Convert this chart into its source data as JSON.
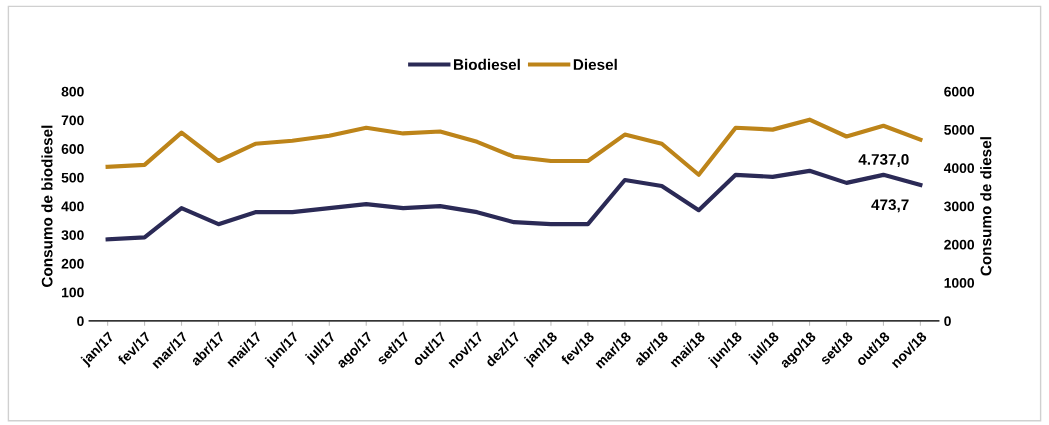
{
  "chart_data": {
    "type": "line",
    "categories": [
      "jan/17",
      "fev/17",
      "mar/17",
      "abr/17",
      "mai/17",
      "jun/17",
      "jul/17",
      "ago/17",
      "set/17",
      "out/17",
      "nov/17",
      "dez/17",
      "jan/18",
      "fev/18",
      "mar/18",
      "abr/18",
      "mai/18",
      "jun/18",
      "jul/18",
      "ago/18",
      "set/18",
      "out/18",
      "nov/18"
    ],
    "ylabel": "Consumo de biodiesel",
    "y2label": "Consumo de diesel",
    "ylim": [
      0,
      800
    ],
    "yticks": [
      0,
      100,
      200,
      300,
      400,
      500,
      600,
      700,
      800
    ],
    "y2lim": [
      0,
      6000
    ],
    "y2ticks": [
      0,
      1000,
      2000,
      3000,
      4000,
      5000,
      6000
    ],
    "legend": "top",
    "grid": false,
    "marker": "none",
    "line_style": "solid",
    "series": [
      {
        "name": "Biodiesel",
        "color": "#2b2a56",
        "values": [
          284,
          291,
          393,
          337,
          379,
          379,
          393,
          407,
          393,
          400,
          379,
          344,
          337,
          337,
          491,
          470,
          386,
          509,
          502,
          523,
          481,
          509,
          473.7
        ],
        "value_labels": [
          null,
          null,
          null,
          null,
          null,
          null,
          null,
          null,
          null,
          null,
          null,
          null,
          null,
          null,
          null,
          null,
          null,
          null,
          null,
          null,
          null,
          null,
          "473,7"
        ]
      },
      {
        "name": "Diesel",
        "color": "#bd8419",
        "axis": "y2",
        "values": [
          4030,
          4080,
          4920,
          4180,
          4630,
          4710,
          4840,
          5050,
          4900,
          4950,
          4680,
          4290,
          4180,
          4180,
          4870,
          4630,
          3820,
          5050,
          5000,
          5260,
          4820,
          5100,
          4737.0
        ],
        "value_labels": [
          null,
          null,
          null,
          null,
          null,
          null,
          null,
          null,
          null,
          null,
          null,
          null,
          null,
          null,
          null,
          null,
          null,
          null,
          null,
          null,
          null,
          null,
          "4.737,0"
        ]
      }
    ]
  }
}
